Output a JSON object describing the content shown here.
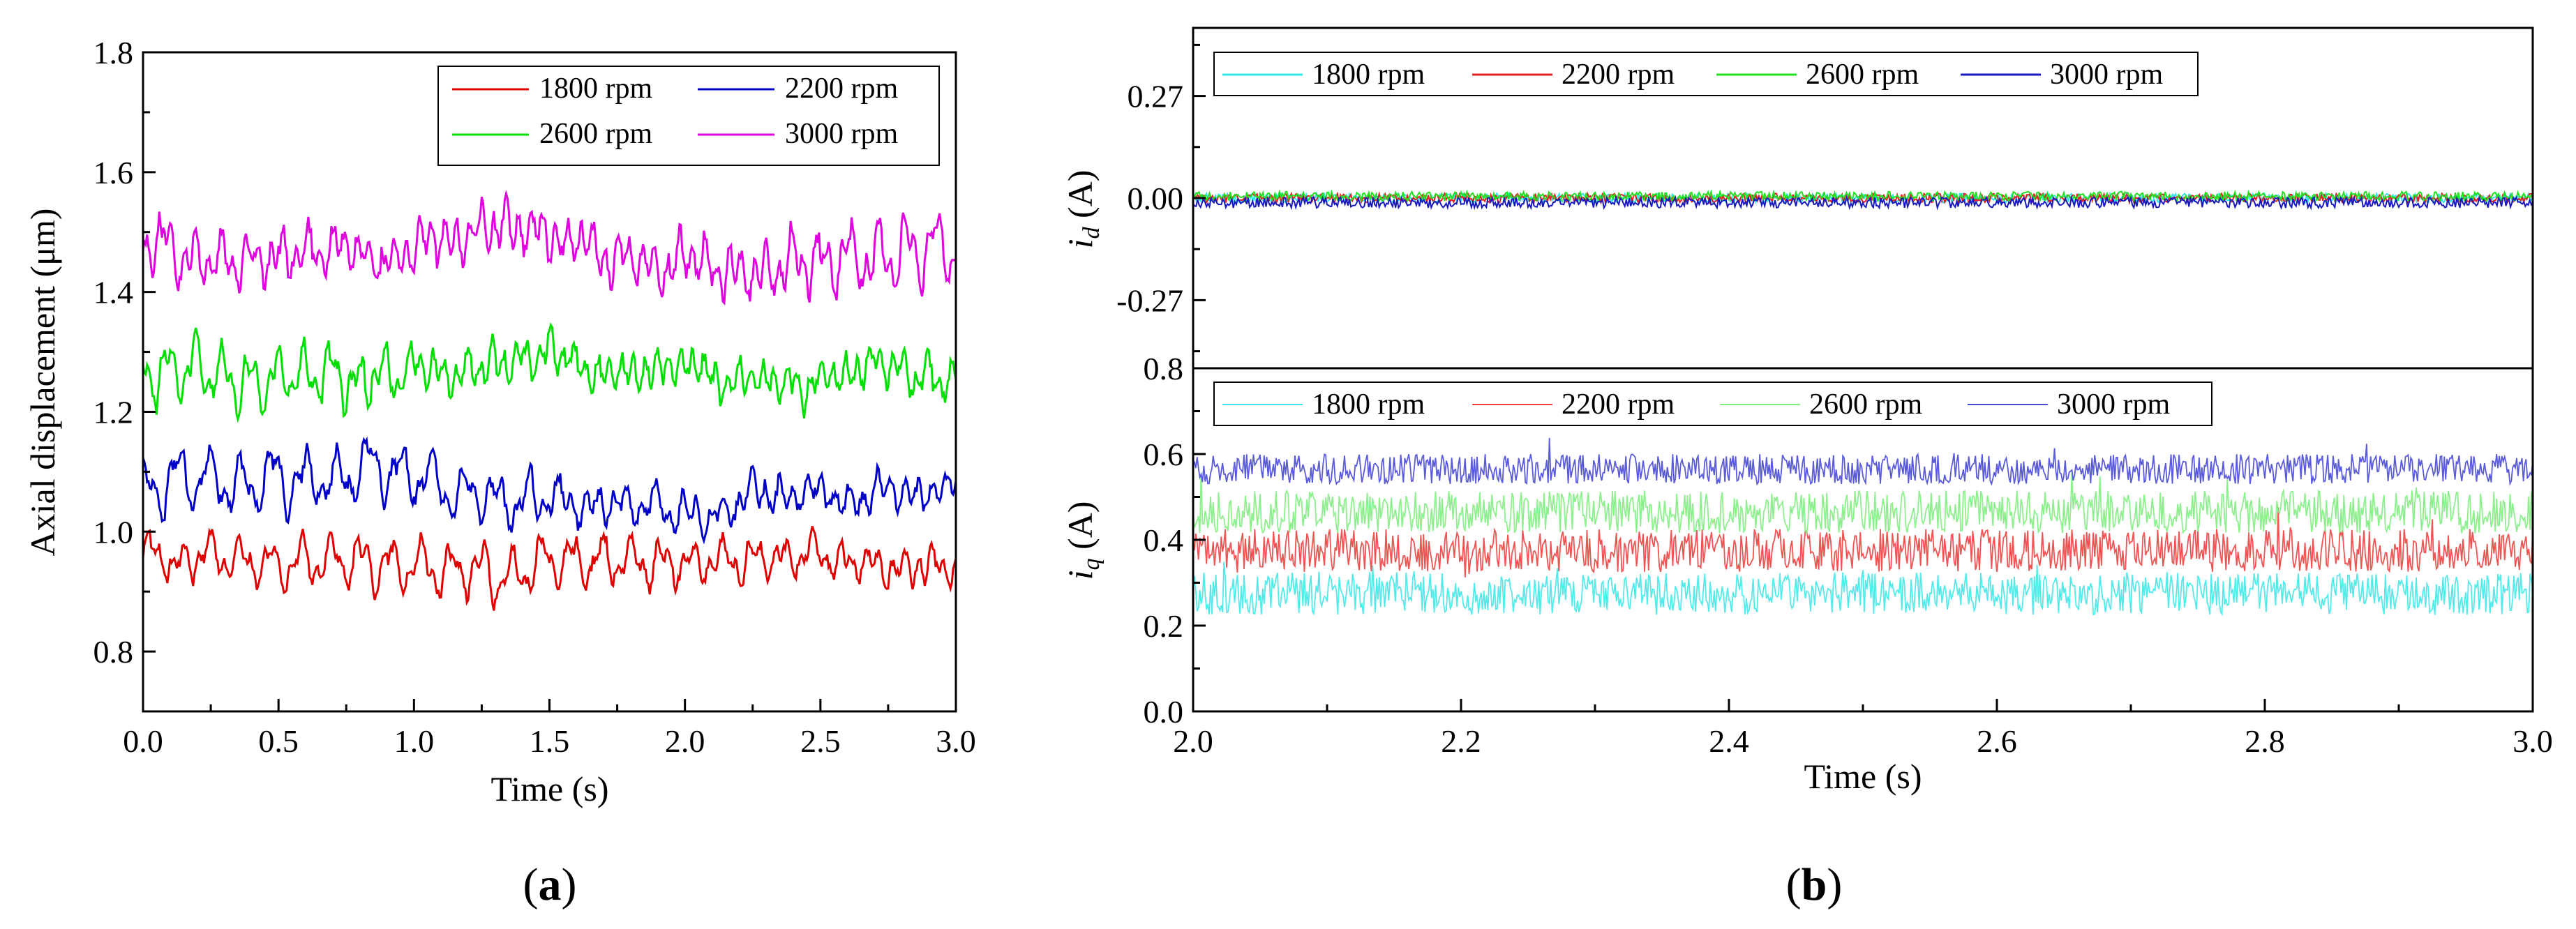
{
  "chart_data": [
    {
      "panel": "a",
      "type": "line",
      "panel_label": "a",
      "xlabel": "Time (s)",
      "ylabel": "Axial displacement (μm)",
      "xlim": [
        0,
        3.0
      ],
      "ylim": [
        0.7,
        1.8
      ],
      "xticks": [
        "0.0",
        "0.5",
        "1.0",
        "1.5",
        "2.0",
        "2.5",
        "3.0"
      ],
      "yticks": [
        "0.8",
        "1.0",
        "1.2",
        "1.4",
        "1.6",
        "1.8"
      ],
      "legend": "top-right",
      "series": [
        {
          "name": "1800 rpm",
          "color": "#e00000",
          "mean": 0.96,
          "amp": 0.035,
          "freq": 9.0
        },
        {
          "name": "2200 rpm",
          "color": "#0000c8",
          "mean": 1.07,
          "amp": 0.04,
          "freq": 8.5
        },
        {
          "name": "2600 rpm",
          "color": "#00e000",
          "mean": 1.265,
          "amp": 0.045,
          "freq": 10.0
        },
        {
          "name": "3000 rpm",
          "color": "#e000e0",
          "mean": 1.475,
          "amp": 0.055,
          "freq": 9.5
        }
      ]
    },
    {
      "panel": "b-top",
      "type": "line",
      "xlabel": "",
      "ylabel": "i_d (A)",
      "ylabel_main": "i",
      "ylabel_sub": "d",
      "ylabel_unit": " (A)",
      "xlim": [
        2.0,
        3.0
      ],
      "ylim": [
        -0.45,
        0.45
      ],
      "yticks": [
        "-0.27",
        "0.00",
        "0.27"
      ],
      "legend": "top-left",
      "series": [
        {
          "name": "1800 rpm",
          "color": "#30e8e8",
          "mean": 0.0,
          "amp": 0.012
        },
        {
          "name": "2200 rpm",
          "color": "#e02020",
          "mean": 0.0,
          "amp": 0.012
        },
        {
          "name": "2600 rpm",
          "color": "#20e020",
          "mean": 0.005,
          "amp": 0.012
        },
        {
          "name": "3000 rpm",
          "color": "#1818c0",
          "mean": -0.012,
          "amp": 0.014
        }
      ]
    },
    {
      "panel": "b-bottom",
      "type": "line",
      "panel_label": "b",
      "xlabel": "Time (s)",
      "ylabel": "i_q (A)",
      "ylabel_main": "i",
      "ylabel_sub": "q",
      "ylabel_unit": " (A)",
      "xlim": [
        2.0,
        3.0
      ],
      "ylim": [
        0.0,
        0.8
      ],
      "xticks": [
        "2.0",
        "2.2",
        "2.4",
        "2.6",
        "2.8",
        "3.0"
      ],
      "yticks": [
        "0.0",
        "0.2",
        "0.4",
        "0.6",
        "0.8"
      ],
      "legend": "top-left",
      "series": [
        {
          "name": "1800 rpm",
          "color": "#40e8e8",
          "mean": 0.275,
          "amp": 0.05
        },
        {
          "name": "2200 rpm",
          "color": "#f04040",
          "mean": 0.375,
          "amp": 0.05
        },
        {
          "name": "2600 rpm",
          "color": "#80ee80",
          "mean": 0.465,
          "amp": 0.05
        },
        {
          "name": "3000 rpm",
          "color": "#4848d8",
          "mean": 0.565,
          "amp": 0.035
        }
      ]
    }
  ]
}
